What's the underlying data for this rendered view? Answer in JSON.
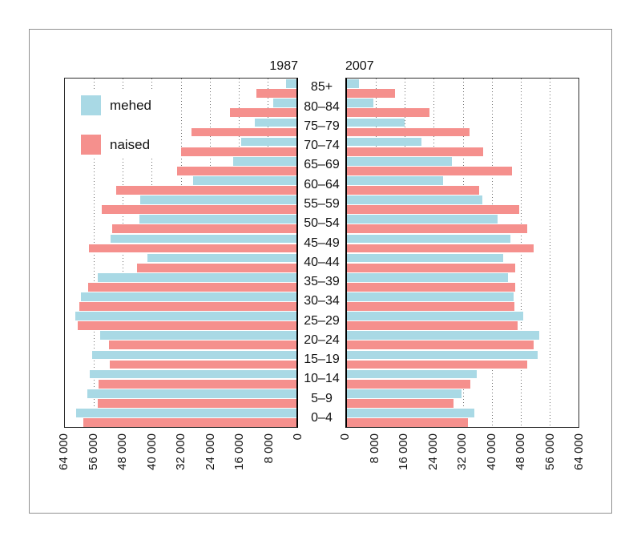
{
  "chart_data": {
    "type": "bar",
    "subtype": "population-pyramid",
    "age_groups": [
      "85+",
      "80–84",
      "75–79",
      "70–74",
      "65–69",
      "60–64",
      "55–59",
      "50–54",
      "45–49",
      "40–44",
      "35–39",
      "30–34",
      "25–29",
      "20–24",
      "15–19",
      "10–14",
      "5–9",
      "0–4"
    ],
    "x_axis": {
      "min": 0,
      "max": 64000,
      "tick_values": [
        0,
        8000,
        16000,
        24000,
        32000,
        40000,
        48000,
        56000,
        64000
      ],
      "tick_labels": [
        "0",
        "8 000",
        "16 000",
        "24 000",
        "32 000",
        "40 000",
        "48 000",
        "56 000",
        "64 000"
      ]
    },
    "grid": "dotted-vertical-every-8000",
    "legend": {
      "position": "upper-left-inside-left-panel",
      "entries": [
        {
          "label": "mehed",
          "color": "#A9D9E5"
        },
        {
          "label": "naised",
          "color": "#F5908D"
        }
      ]
    },
    "panels": [
      {
        "title": "1987",
        "side": "left",
        "series": [
          {
            "name": "mehed",
            "color": "#A9D9E5",
            "values": [
              2900,
              6400,
              11500,
              15300,
              17400,
              28600,
              43200,
              43500,
              51300,
              41100,
              55000,
              59600,
              61200,
              54300,
              56500,
              57200,
              57900,
              60900
            ]
          },
          {
            "name": "naised",
            "color": "#F5908D",
            "values": [
              11000,
              18300,
              28900,
              31900,
              32900,
              49800,
              53900,
              51000,
              57400,
              44100,
              57600,
              60100,
              60500,
              51900,
              51500,
              54700,
              55000,
              58900
            ]
          }
        ]
      },
      {
        "title": "2007",
        "side": "right",
        "series": [
          {
            "name": "mehed",
            "color": "#A9D9E5",
            "values": [
              3400,
              7200,
              15900,
              20700,
              28900,
              26500,
              37500,
              41700,
              45200,
              43100,
              44500,
              46000,
              48800,
              53100,
              52600,
              35800,
              31600,
              35300
            ]
          },
          {
            "name": "naised",
            "color": "#F5908D",
            "values": [
              13300,
              22700,
              33800,
              37600,
              45700,
              36500,
              47600,
              49900,
              51500,
              46400,
              46400,
              46200,
              47100,
              51700,
              49900,
              34100,
              29400,
              33400
            ]
          }
        ]
      }
    ]
  }
}
